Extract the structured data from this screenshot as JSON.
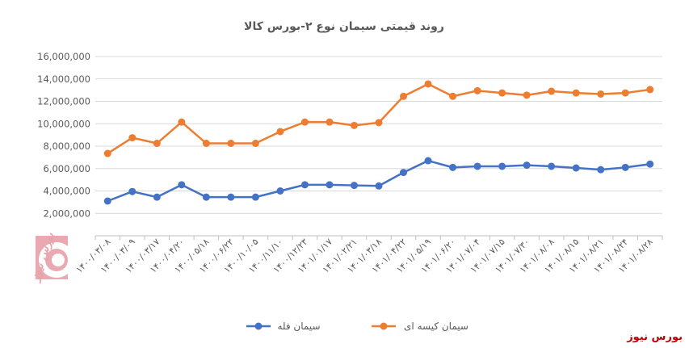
{
  "brand_label": "بورس نیوز",
  "watermark_text": "بورس نیوز",
  "chart_data": {
    "type": "line",
    "title": "روند قیمتی سیمان نوع ۲-بورس کالا",
    "xlabel": "",
    "ylabel": "",
    "ylim": [
      0,
      16000000
    ],
    "yticks": [
      "16,000,000",
      "14,000,000",
      "12,000,000",
      "10,000,000",
      "8,000,000",
      "6,000,000",
      "4,000,000",
      "2,000,000"
    ],
    "ytick_values": [
      16000000,
      14000000,
      12000000,
      10000000,
      8000000,
      6000000,
      4000000,
      2000000
    ],
    "grid": true,
    "legend_position": "bottom",
    "categories": [
      "۱۴۰۰/۰۳/۰۸",
      "۱۴۰۰/۰۳/۰۹",
      "۱۴۰۰/۰۳/۱۷",
      "۱۴۰۰/۰۴/۲۰",
      "۱۴۰۰/۰۵/۱۸",
      "۱۴۰۰/۰۶/۲۲",
      "۱۴۰۰/۱۰/۰۵",
      "۱۴۰۰/۱۱/۱۰",
      "۱۴۰۰/۱۲/۲۳",
      "۱۴۰۱/۰۱/۱۷",
      "۱۴۰۱/۰۲/۲۱",
      "۱۴۰۱/۰۳/۱۸",
      "۱۴۰۱/۰۴/۲۲",
      "۱۴۰۱/۰۵/۱۹",
      "۱۴۰۱/۰۶/۲۰",
      "۱۴۰۱/۰۷/۰۴",
      "۱۴۰۱/۰۷/۱۵",
      "۱۴۰۱/۰۷/۳۰",
      "۱۴۰۱/۰۸/۰۸",
      "۱۴۰۱/۰۸/۱۵",
      "۱۴۰۱/۰۸/۲۱",
      "۱۴۰۱/۰۸/۲۴",
      "۱۴۰۱/۰۸/۲۸"
    ],
    "series": [
      {
        "name": "سیمان فله",
        "color": "#4472c4",
        "values": [
          3100000,
          3950000,
          3450000,
          4550000,
          3450000,
          3450000,
          3450000,
          4000000,
          4550000,
          4550000,
          4500000,
          4450000,
          5650000,
          6700000,
          6100000,
          6200000,
          6200000,
          6300000,
          6200000,
          6050000,
          5900000,
          6100000,
          6400000
        ]
      },
      {
        "name": "سیمان کیسه ای",
        "color": "#ed7d31",
        "values": [
          7350000,
          8750000,
          8250000,
          10150000,
          8250000,
          8250000,
          8250000,
          9300000,
          10150000,
          10150000,
          9850000,
          10100000,
          12450000,
          13550000,
          12450000,
          12950000,
          12750000,
          12550000,
          12900000,
          12750000,
          12650000,
          12750000,
          13050000
        ]
      }
    ]
  }
}
